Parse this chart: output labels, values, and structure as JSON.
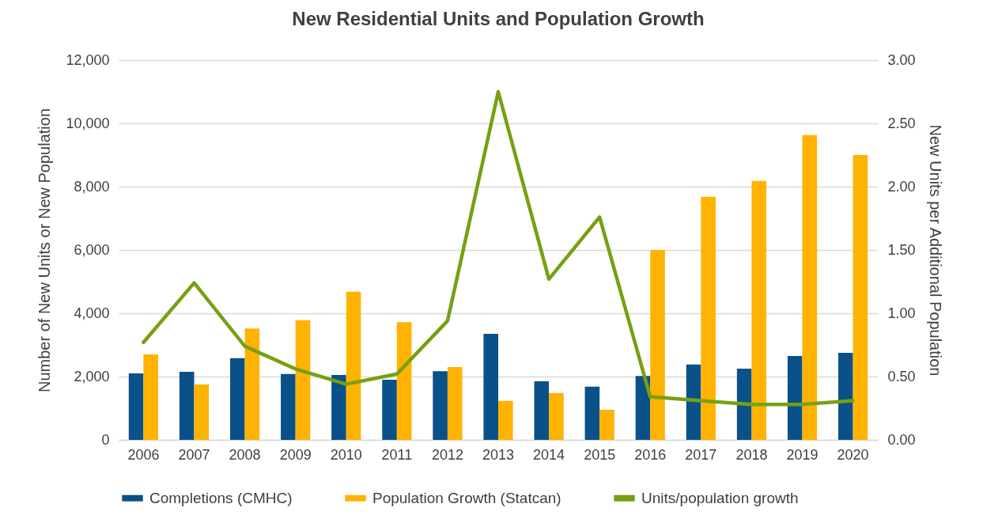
{
  "chart_data": {
    "type": "bar",
    "title": "New Residential Units and Population Growth",
    "ylabel": "Number of New Units or New Population",
    "y2label": "New Units per Additional Population",
    "categories": [
      "2006",
      "2007",
      "2008",
      "2009",
      "2010",
      "2011",
      "2012",
      "2013",
      "2014",
      "2015",
      "2016",
      "2017",
      "2018",
      "2019",
      "2020"
    ],
    "series": [
      {
        "name": "Completions (CMHC)",
        "color": "#0a5089",
        "values": [
          2100,
          2150,
          2580,
          2080,
          2050,
          1900,
          2170,
          3350,
          1850,
          1680,
          2020,
          2380,
          2250,
          2650,
          2750
        ]
      },
      {
        "name": "Population Growth (Statcan)",
        "color": "#ffb300",
        "values": [
          2700,
          1750,
          3520,
          3780,
          4680,
          3720,
          2300,
          1230,
          1480,
          950,
          6000,
          7680,
          8180,
          9630,
          9000
        ]
      },
      {
        "name": "Units/population growth",
        "color": "#76a012",
        "type": "line",
        "axis": "y2",
        "values": [
          0.77,
          1.24,
          0.74,
          0.56,
          0.44,
          0.52,
          0.94,
          2.75,
          1.27,
          1.76,
          0.34,
          0.31,
          0.28,
          0.28,
          0.31
        ]
      }
    ],
    "ylim": [
      0,
      12000
    ],
    "yticks": [
      {
        "value": 0,
        "label": "0"
      },
      {
        "value": 2000,
        "label": "2,000"
      },
      {
        "value": 4000,
        "label": "4,000"
      },
      {
        "value": 6000,
        "label": "6,000"
      },
      {
        "value": 8000,
        "label": "8,000"
      },
      {
        "value": 10000,
        "label": "10,000"
      },
      {
        "value": 12000,
        "label": "12,000"
      }
    ],
    "y2lim": [
      0,
      3
    ],
    "y2ticks": [
      {
        "value": 0,
        "label": "0.00"
      },
      {
        "value": 0.5,
        "label": "0.50"
      },
      {
        "value": 1,
        "label": "1.00"
      },
      {
        "value": 1.5,
        "label": "1.50"
      },
      {
        "value": 2,
        "label": "2.00"
      },
      {
        "value": 2.5,
        "label": "2.50"
      },
      {
        "value": 3,
        "label": "3.00"
      }
    ],
    "grid": "y",
    "legend": "bottom",
    "marker": "none",
    "line_style": "solid"
  }
}
